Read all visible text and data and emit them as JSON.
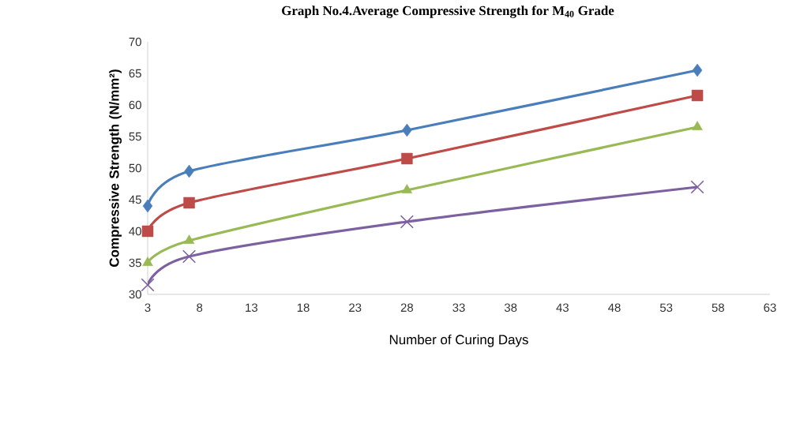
{
  "chart_data": {
    "type": "line",
    "title": "Graph No.4.Average Compressive Strength for M$_{40}$ Grade",
    "xlabel": "Number of  Curing Days",
    "ylabel": "Compressive Strength (N/mm²)",
    "x": [
      3,
      7,
      28,
      56
    ],
    "series": [
      {
        "color": "#4a7ebb",
        "marker": "diamond",
        "values": [
          44,
          49.5,
          56,
          65.5
        ]
      },
      {
        "color": "#be4b48",
        "marker": "square",
        "values": [
          40,
          44.5,
          51.5,
          61.5
        ]
      },
      {
        "color": "#98b954",
        "marker": "triangle",
        "values": [
          35,
          38.5,
          46.5,
          56.5
        ]
      },
      {
        "color": "#7d60a0",
        "marker": "cross",
        "values": [
          31.5,
          36,
          41.5,
          47
        ]
      }
    ],
    "xlim": [
      3,
      63
    ],
    "xticks": [
      3,
      8,
      13,
      18,
      23,
      28,
      33,
      38,
      43,
      48,
      53,
      58,
      63
    ],
    "ylim": [
      30,
      70
    ],
    "yticks": [
      30,
      35,
      40,
      45,
      50,
      55,
      60,
      65,
      70
    ],
    "grid": false,
    "line_style": "solid"
  }
}
